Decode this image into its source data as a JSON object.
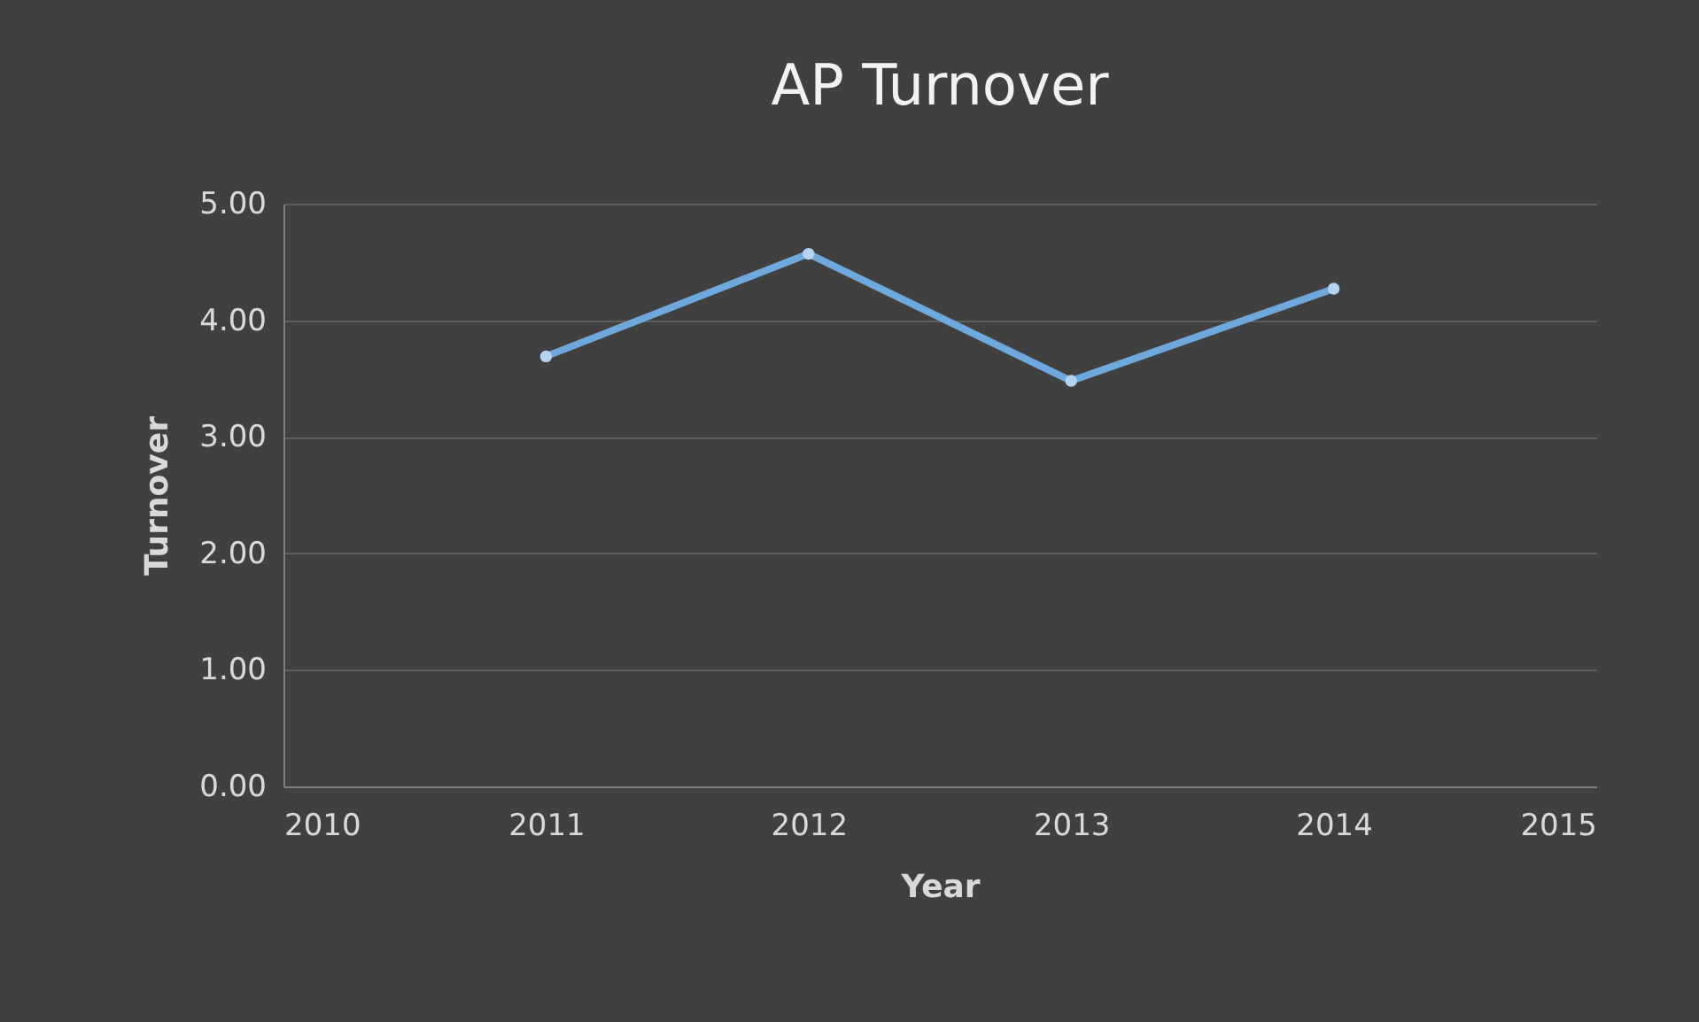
{
  "chart_data": {
    "type": "line",
    "title": "AP Turnover",
    "xlabel": "Year",
    "ylabel": "Turnover",
    "x": [
      2011,
      2012,
      2013,
      2014
    ],
    "series": [
      {
        "color": "#6fa8dc",
        "values": [
          3.69,
          4.57,
          3.48,
          4.27
        ]
      }
    ],
    "xlim": [
      2010,
      2015
    ],
    "xticks": [
      2010,
      2011,
      2012,
      2013,
      2014,
      2015
    ],
    "ylim": [
      0,
      5
    ],
    "yticks": [
      {
        "value": 0,
        "label": "0.00"
      },
      {
        "value": 1,
        "label": "1.00"
      },
      {
        "value": 2,
        "label": "2.00"
      },
      {
        "value": 3,
        "label": "3.00"
      },
      {
        "value": 4,
        "label": "4.00"
      },
      {
        "value": 5,
        "label": "5.00"
      }
    ],
    "grid": "y",
    "marker": "circle",
    "line_style": "solid"
  }
}
